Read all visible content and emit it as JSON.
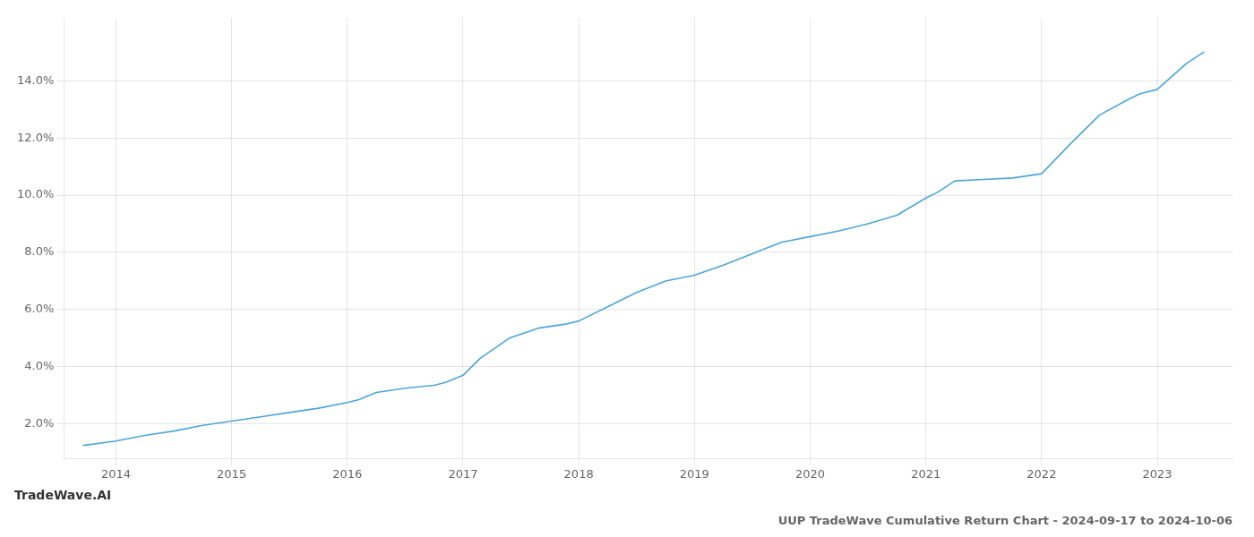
{
  "chart_data": {
    "type": "line",
    "title": "UUP TradeWave Cumulative Return Chart - 2024-09-17 to 2024-10-06",
    "annotations": [
      "TradeWave.AI"
    ],
    "x": [
      2013.72,
      2014.0,
      2014.25,
      2014.5,
      2014.75,
      2015.0,
      2015.25,
      2015.5,
      2015.75,
      2016.0,
      2016.1,
      2016.25,
      2016.5,
      2016.75,
      2016.85,
      2017.0,
      2017.15,
      2017.4,
      2017.65,
      2017.9,
      2018.0,
      2018.25,
      2018.5,
      2018.75,
      2019.0,
      2019.25,
      2019.5,
      2019.75,
      2020.0,
      2020.25,
      2020.5,
      2020.75,
      2021.0,
      2021.1,
      2021.25,
      2021.5,
      2021.75,
      2022.0,
      2022.25,
      2022.5,
      2022.75,
      2022.85,
      2023.0,
      2023.25,
      2023.4
    ],
    "values": [
      1.25,
      1.4,
      1.6,
      1.75,
      1.95,
      2.1,
      2.25,
      2.4,
      2.55,
      2.75,
      2.85,
      3.1,
      3.25,
      3.35,
      3.45,
      3.7,
      4.3,
      5.0,
      5.35,
      5.5,
      5.6,
      6.1,
      6.6,
      7.0,
      7.2,
      7.55,
      7.95,
      8.35,
      8.55,
      8.75,
      9.0,
      9.3,
      9.9,
      10.1,
      10.5,
      10.55,
      10.6,
      10.75,
      11.8,
      12.8,
      13.35,
      13.55,
      13.7,
      14.6,
      15.0
    ],
    "color": "#4da6d9",
    "xlim": [
      2013.55,
      2023.65
    ],
    "ylim": [
      0.8,
      16.2
    ],
    "xticks": [
      2014,
      2015,
      2016,
      2017,
      2018,
      2019,
      2020,
      2021,
      2022,
      2023
    ],
    "yticks": [
      {
        "value": 2.0,
        "label": "2.0%"
      },
      {
        "value": 4.0,
        "label": "4.0%"
      },
      {
        "value": 6.0,
        "label": "6.0%"
      },
      {
        "value": 8.0,
        "label": "8.0%"
      },
      {
        "value": 10.0,
        "label": "10.0%"
      },
      {
        "value": 12.0,
        "label": "12.0%"
      },
      {
        "value": 14.0,
        "label": "14.0%"
      }
    ],
    "grid": true
  }
}
